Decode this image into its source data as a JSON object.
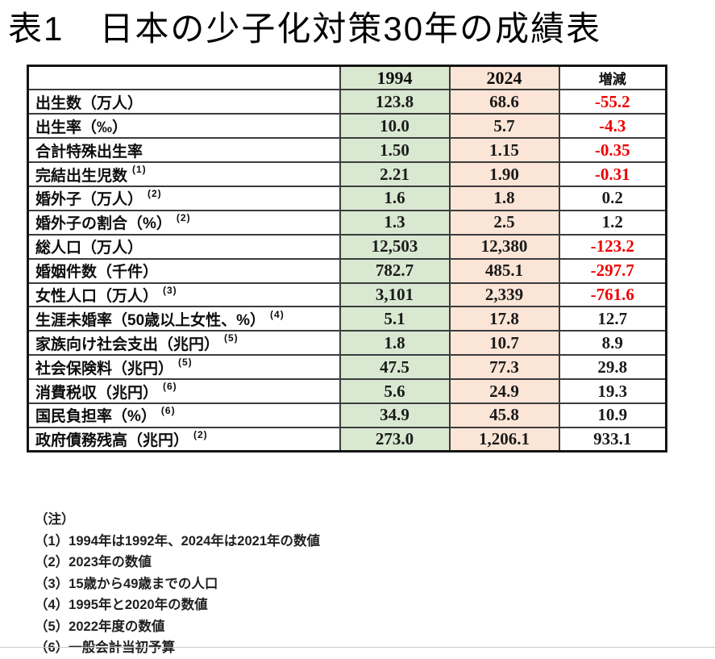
{
  "title": "表1　日本の少子化対策30年の成績表",
  "table": {
    "columns": [
      "",
      "1994",
      "2024",
      "増減"
    ],
    "rows": [
      {
        "label": "出生数（万人）",
        "sup": "",
        "y1994": "123.8",
        "y2024": "68.6",
        "change": "-55.2"
      },
      {
        "label": "出生率（‰）",
        "sup": "",
        "y1994": "10.0",
        "y2024": "5.7",
        "change": "-4.3"
      },
      {
        "label": "合計特殊出生率",
        "sup": "",
        "y1994": "1.50",
        "y2024": "1.15",
        "change": "-0.35"
      },
      {
        "label": "完結出生児数",
        "sup": "(1)",
        "y1994": "2.21",
        "y2024": "1.90",
        "change": "-0.31"
      },
      {
        "label": "婚外子（万人）",
        "sup": "(2)",
        "y1994": "1.6",
        "y2024": "1.8",
        "change": "0.2"
      },
      {
        "label": "婚外子の割合（%）",
        "sup": "(2)",
        "y1994": "1.3",
        "y2024": "2.5",
        "change": "1.2"
      },
      {
        "label": "総人口（万人）",
        "sup": "",
        "y1994": "12,503",
        "y2024": "12,380",
        "change": "-123.2"
      },
      {
        "label": "婚姻件数（千件）",
        "sup": "",
        "y1994": "782.7",
        "y2024": "485.1",
        "change": "-297.7"
      },
      {
        "label": "女性人口（万人）",
        "sup": "(3)",
        "y1994": "3,101",
        "y2024": "2,339",
        "change": "-761.6"
      },
      {
        "label": "生涯未婚率（50歳以上女性、%）",
        "sup": "(4)",
        "y1994": "5.1",
        "y2024": "17.8",
        "change": "12.7"
      },
      {
        "label": "家族向け社会支出（兆円）",
        "sup": "(5)",
        "y1994": "1.8",
        "y2024": "10.7",
        "change": "8.9"
      },
      {
        "label": "社会保険料（兆円）",
        "sup": "(5)",
        "y1994": "47.5",
        "y2024": "77.3",
        "change": "29.8"
      },
      {
        "label": "消費税収（兆円）",
        "sup": "(6)",
        "y1994": "5.6",
        "y2024": "24.9",
        "change": "19.3"
      },
      {
        "label": "国民負担率（%）",
        "sup": "(6)",
        "y1994": "34.9",
        "y2024": "45.8",
        "change": "10.9"
      },
      {
        "label": "政府債務残高（兆円）",
        "sup": "(2)",
        "y1994": "273.0",
        "y2024": "1,206.1",
        "change": "933.1"
      }
    ]
  },
  "notes": {
    "heading": "（注）",
    "items": [
      "（1）1994年は1992年、2024年は2021年の数値",
      "（2）2023年の数値",
      "（3）15歳から49歳までの人口",
      "（4）1995年と2020年の数値",
      "（5）2022年度の数値",
      "（6）一般会計当初予算"
    ]
  },
  "colors": {
    "col_1994_bg": "#d9e8d1",
    "col_2024_bg": "#fbe5d6",
    "negative_text": "#ee0000",
    "positive_text": "#1a1a1a"
  }
}
